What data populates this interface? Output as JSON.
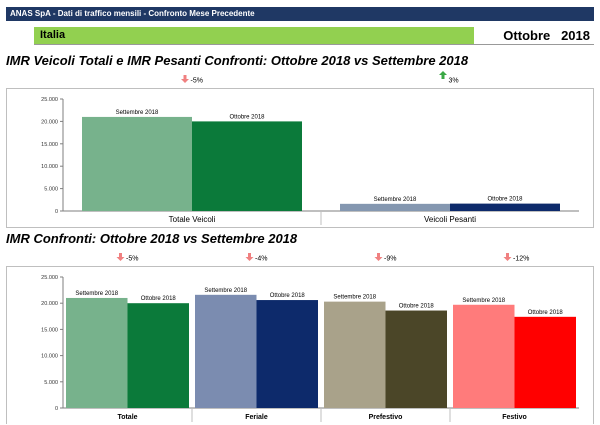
{
  "header": {
    "banner": "ANAS SpA - Dati di traffico mensili - Confronto Mese Precedente",
    "region": "Italia",
    "period": "Ottobre   2018"
  },
  "sections": [
    {
      "title": "IMR Veicoli Totali e IMR Pesanti Confronti: Ottobre 2018 vs Settembre 2018"
    },
    {
      "title": "IMR Confronti: Ottobre 2018 vs Settembre 2018"
    }
  ],
  "chart_data": [
    {
      "type": "bar",
      "title": "IMR Veicoli Totali e IMR Pesanti Confronti: Ottobre 2018 vs Settembre 2018",
      "categories": [
        "Totale Veicoli",
        "Veicoli Pesanti"
      ],
      "series": [
        {
          "name": "Settembre 2018",
          "values": [
            21000,
            1600
          ]
        },
        {
          "name": "Ottobre 2018",
          "values": [
            20000,
            1650
          ]
        }
      ],
      "yticks": [
        "0",
        "5.000",
        "10.000",
        "15.000",
        "20.000",
        "25.000"
      ],
      "ylim": [
        0,
        25000
      ],
      "changes": [
        {
          "label": "-5%",
          "direction": "down"
        },
        {
          "label": "3%",
          "direction": "up"
        }
      ],
      "colors": [
        [
          "#77b28c",
          "#0b7a3a"
        ],
        [
          "#8497b0",
          "#0d2a6b"
        ]
      ],
      "grid": false
    },
    {
      "type": "bar",
      "title": "IMR Confronti: Ottobre 2018 vs Settembre 2018",
      "categories": [
        "Totale",
        "Feriale",
        "Prefestivo",
        "Festivo"
      ],
      "series": [
        {
          "name": "Settembre 2018",
          "values": [
            21000,
            21600,
            20300,
            19700
          ]
        },
        {
          "name": "Ottobre 2018",
          "values": [
            20000,
            20600,
            18600,
            17400
          ]
        }
      ],
      "yticks": [
        "0",
        "5.000",
        "10.000",
        "15.000",
        "20.000",
        "25.000"
      ],
      "ylim": [
        0,
        25000
      ],
      "changes": [
        {
          "label": "-5%",
          "direction": "down"
        },
        {
          "label": "-4%",
          "direction": "down"
        },
        {
          "label": "-9%",
          "direction": "down"
        },
        {
          "label": "-12%",
          "direction": "down"
        }
      ],
      "colors": [
        [
          "#77b28c",
          "#0b7a3a"
        ],
        [
          "#7b8cb0",
          "#0d2a6b"
        ],
        [
          "#a9a28a",
          "#4b4628"
        ],
        [
          "#ff7b7b",
          "#ff0000"
        ]
      ],
      "grid": false
    }
  ]
}
